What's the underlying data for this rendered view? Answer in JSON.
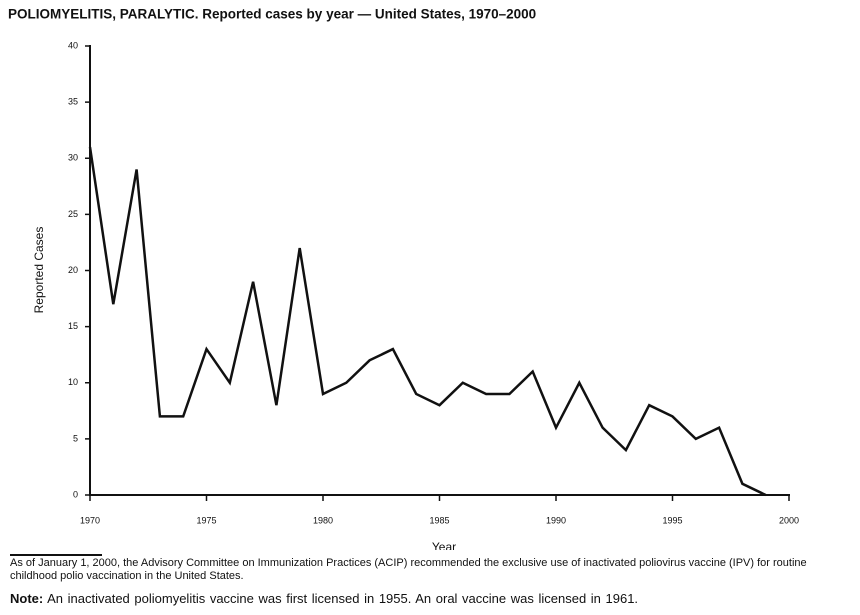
{
  "chart_data": {
    "type": "line",
    "title": "POLIOMYELITIS, PARALYTIC. Reported cases by year — United States, 1970–2000",
    "x_label": "Year",
    "y_label": "Reported Cases",
    "x": [
      1970,
      1971,
      1972,
      1973,
      1974,
      1975,
      1976,
      1977,
      1978,
      1979,
      1980,
      1981,
      1982,
      1983,
      1984,
      1985,
      1986,
      1987,
      1988,
      1989,
      1990,
      1991,
      1992,
      1993,
      1994,
      1995,
      1996,
      1997,
      1998,
      1999
    ],
    "values": [
      31,
      17,
      29,
      7,
      7,
      13,
      10,
      19,
      8,
      22,
      9,
      10,
      12,
      13,
      9,
      8,
      10,
      9,
      9,
      11,
      6,
      10,
      6,
      4,
      8,
      7,
      5,
      6,
      1,
      0
    ],
    "color": "#111111",
    "xlim": [
      1970,
      2000
    ],
    "xticks": [
      1970,
      1975,
      1980,
      1985,
      1990,
      1995,
      2000
    ],
    "ylim": [
      0,
      40
    ],
    "yticks": [
      0,
      5,
      10,
      15,
      20,
      25,
      30,
      35,
      40
    ],
    "grid": false
  },
  "footnote": "As of January 1, 2000, the Advisory Committee on Immunization Practices (ACIP) recommended the exclusive use of inactivated poliovirus vaccine (IPV) for routine childhood polio vaccination in the United States.",
  "note": {
    "label": "Note:",
    "text": "An inactivated poliomyelitis vaccine was first licensed in 1955. An oral vaccine was licensed in 1961."
  }
}
